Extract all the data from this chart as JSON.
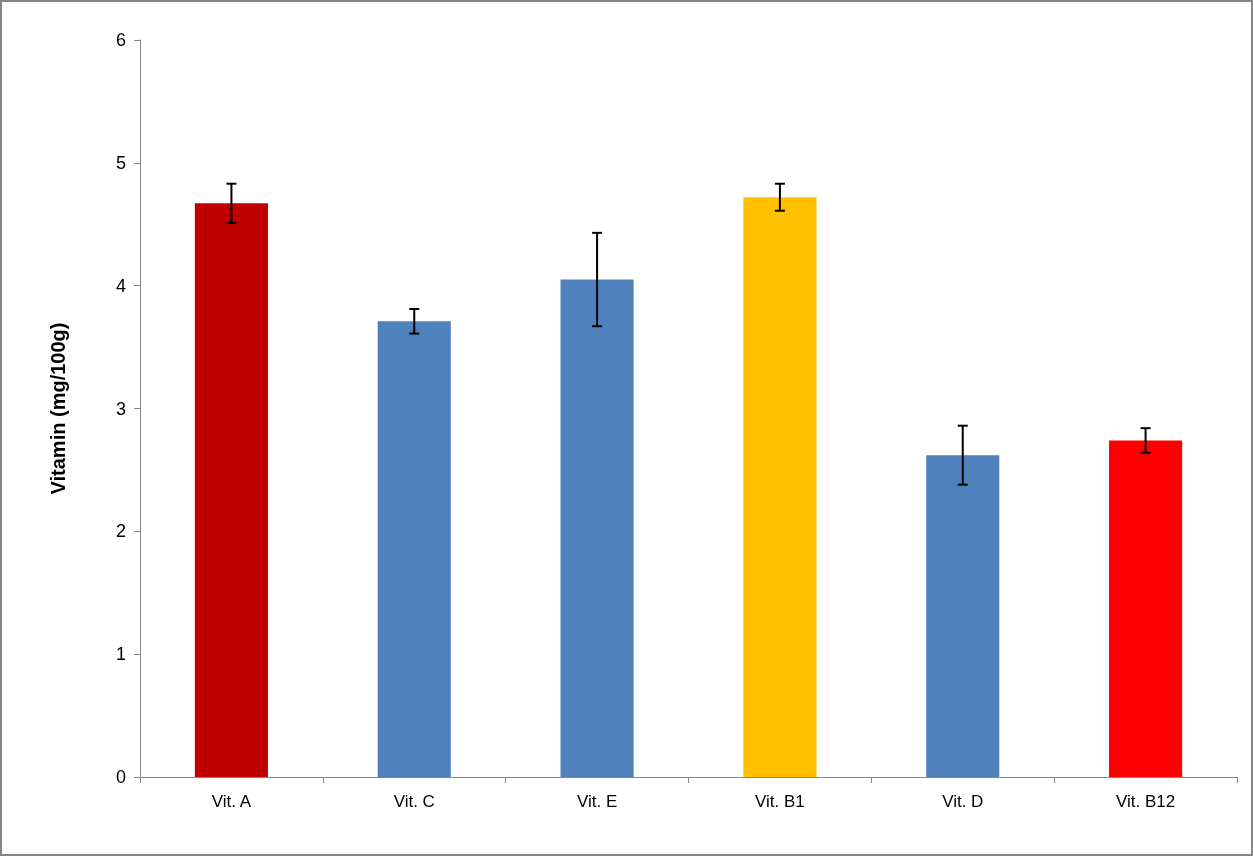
{
  "chart_data": {
    "type": "bar",
    "ylabel": "Vitamin (mg/100g)",
    "categories": [
      "Vit. A",
      "Vit. C",
      "Vit. E",
      "Vit. B1",
      "Vit. D",
      "Vit. B12"
    ],
    "values": [
      4.67,
      3.71,
      4.05,
      4.72,
      2.62,
      2.74
    ],
    "errors": [
      0.16,
      0.1,
      0.38,
      0.11,
      0.24,
      0.1
    ],
    "colors": [
      "#c00000",
      "#4f81bd",
      "#4f81bd",
      "#ffc000",
      "#4f81bd",
      "#ff0000"
    ],
    "ylim": [
      0,
      6
    ],
    "yticks": [
      0,
      1,
      2,
      3,
      4,
      5,
      6
    ],
    "grid": false
  }
}
